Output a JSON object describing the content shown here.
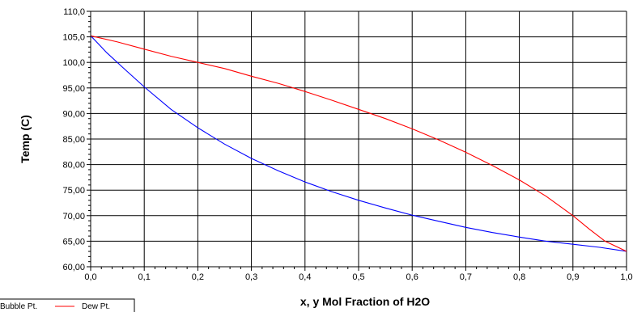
{
  "chart_data": {
    "type": "line",
    "title": "",
    "xlabel": "x, y Mol Fraction of H2O",
    "ylabel": "Temp (C)",
    "xlim": [
      0,
      1
    ],
    "ylim": [
      60,
      110
    ],
    "grid": true,
    "legend_position": "bottom-left",
    "x_ticks": [
      0.0,
      0.1,
      0.2,
      0.3,
      0.4,
      0.5,
      0.6,
      0.7,
      0.8,
      0.9,
      1.0
    ],
    "x_tick_labels": [
      "0,0",
      "0,1",
      "0,2",
      "0,3",
      "0,4",
      "0,5",
      "0,6",
      "0,7",
      "0,8",
      "0,9",
      "1,0"
    ],
    "y_ticks": [
      60,
      65,
      70,
      75,
      80,
      85,
      90,
      95,
      100,
      105,
      110
    ],
    "y_tick_labels": [
      "60,00",
      "65,00",
      "70,00",
      "75,00",
      "80,00",
      "85,00",
      "90,00",
      "95,00",
      "100,0",
      "105,0",
      "110,0"
    ],
    "series": [
      {
        "name": "Bubble Pt.",
        "color": "#0000ff",
        "x": [
          0.0,
          0.03,
          0.06,
          0.1,
          0.15,
          0.2,
          0.25,
          0.3,
          0.35,
          0.4,
          0.45,
          0.5,
          0.55,
          0.6,
          0.65,
          0.7,
          0.75,
          0.8,
          0.85,
          0.9,
          0.95,
          1.0
        ],
        "y": [
          105.2,
          101.9,
          99.0,
          95.2,
          90.8,
          87.2,
          84.0,
          81.2,
          78.8,
          76.6,
          74.7,
          73.0,
          71.5,
          70.1,
          68.9,
          67.7,
          66.7,
          65.8,
          65.0,
          64.4,
          63.8,
          63.0
        ]
      },
      {
        "name": "Dew Pt.",
        "color": "#ff0000",
        "x": [
          0.0,
          0.05,
          0.1,
          0.15,
          0.2,
          0.25,
          0.3,
          0.35,
          0.4,
          0.45,
          0.5,
          0.55,
          0.6,
          0.65,
          0.7,
          0.75,
          0.8,
          0.85,
          0.9,
          0.93,
          0.96,
          1.0
        ],
        "y": [
          105.2,
          104.0,
          102.6,
          101.2,
          100.0,
          98.8,
          97.3,
          95.9,
          94.3,
          92.6,
          90.8,
          89.0,
          87.0,
          84.8,
          82.4,
          79.8,
          77.0,
          73.8,
          70.0,
          67.4,
          65.0,
          63.0
        ]
      }
    ]
  }
}
